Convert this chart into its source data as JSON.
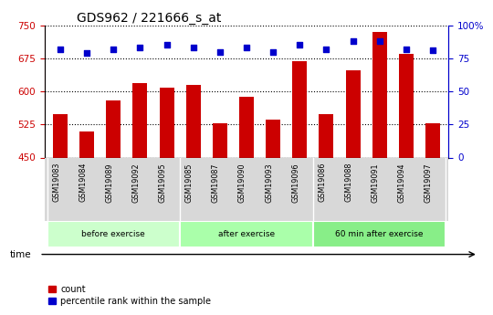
{
  "title": "GDS962 / 221666_s_at",
  "categories": [
    "GSM19083",
    "GSM19084",
    "GSM19089",
    "GSM19092",
    "GSM19095",
    "GSM19085",
    "GSM19087",
    "GSM19090",
    "GSM19093",
    "GSM19096",
    "GSM19086",
    "GSM19088",
    "GSM19091",
    "GSM19094",
    "GSM19097"
  ],
  "counts": [
    548,
    510,
    580,
    618,
    608,
    614,
    527,
    588,
    535,
    668,
    548,
    648,
    735,
    685,
    527
  ],
  "percentile_ranks": [
    82,
    79,
    82,
    83,
    85,
    83,
    80,
    83,
    80,
    85,
    82,
    88,
    88,
    82,
    81
  ],
  "groups": [
    {
      "label": "before exercise",
      "start": 0,
      "end": 5,
      "color": "#ccffcc"
    },
    {
      "label": "after exercise",
      "start": 5,
      "end": 10,
      "color": "#aaffaa"
    },
    {
      "label": "60 min after exercise",
      "start": 10,
      "end": 15,
      "color": "#88ee88"
    }
  ],
  "ylim_left": [
    450,
    750
  ],
  "ylim_right": [
    0,
    100
  ],
  "yticks_left": [
    450,
    525,
    600,
    675,
    750
  ],
  "yticks_right": [
    0,
    25,
    50,
    75,
    100
  ],
  "bar_color": "#cc0000",
  "dot_color": "#0000cc",
  "bar_width": 0.55,
  "left_axis_color": "#cc0000",
  "right_axis_color": "#0000cc",
  "plot_bg": "#ffffff",
  "tick_area_color": "#d8d8d8"
}
